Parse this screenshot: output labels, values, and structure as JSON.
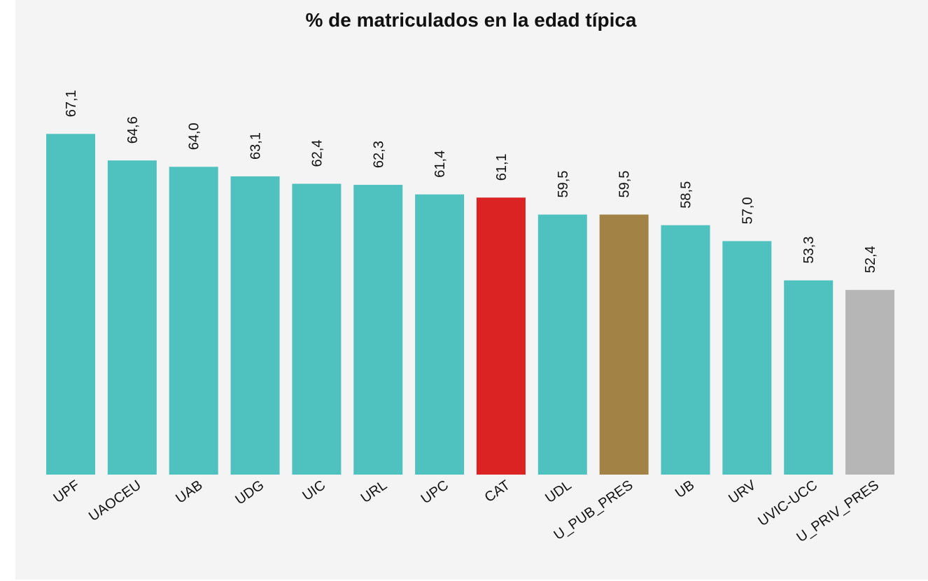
{
  "chart_data": {
    "type": "bar",
    "title": "% de matriculados en la edad típica",
    "categories": [
      "UPF",
      "UAOCEU",
      "UAB",
      "UDG",
      "UIC",
      "URL",
      "UPC",
      "CAT",
      "UDL",
      "U_PUB_PRES",
      "UB",
      "URV",
      "UVIC-UCC",
      "U_PRIV_PRES"
    ],
    "values": [
      67.1,
      64.6,
      64.0,
      63.1,
      62.4,
      62.3,
      61.4,
      61.1,
      59.5,
      59.5,
      58.5,
      57.0,
      53.3,
      52.4
    ],
    "value_labels": [
      "67,1",
      "64,6",
      "64,0",
      "63,1",
      "62,4",
      "62,3",
      "61,4",
      "61,1",
      "59,5",
      "59,5",
      "58,5",
      "57,0",
      "53,3",
      "52,4"
    ],
    "colors": [
      "#4fc1bf",
      "#4fc1bf",
      "#4fc1bf",
      "#4fc1bf",
      "#4fc1bf",
      "#4fc1bf",
      "#4fc1bf",
      "#dc2323",
      "#4fc1bf",
      "#a38345",
      "#4fc1bf",
      "#4fc1bf",
      "#4fc1bf",
      "#b6b6b6"
    ],
    "ylim": [
      35,
      72
    ]
  }
}
